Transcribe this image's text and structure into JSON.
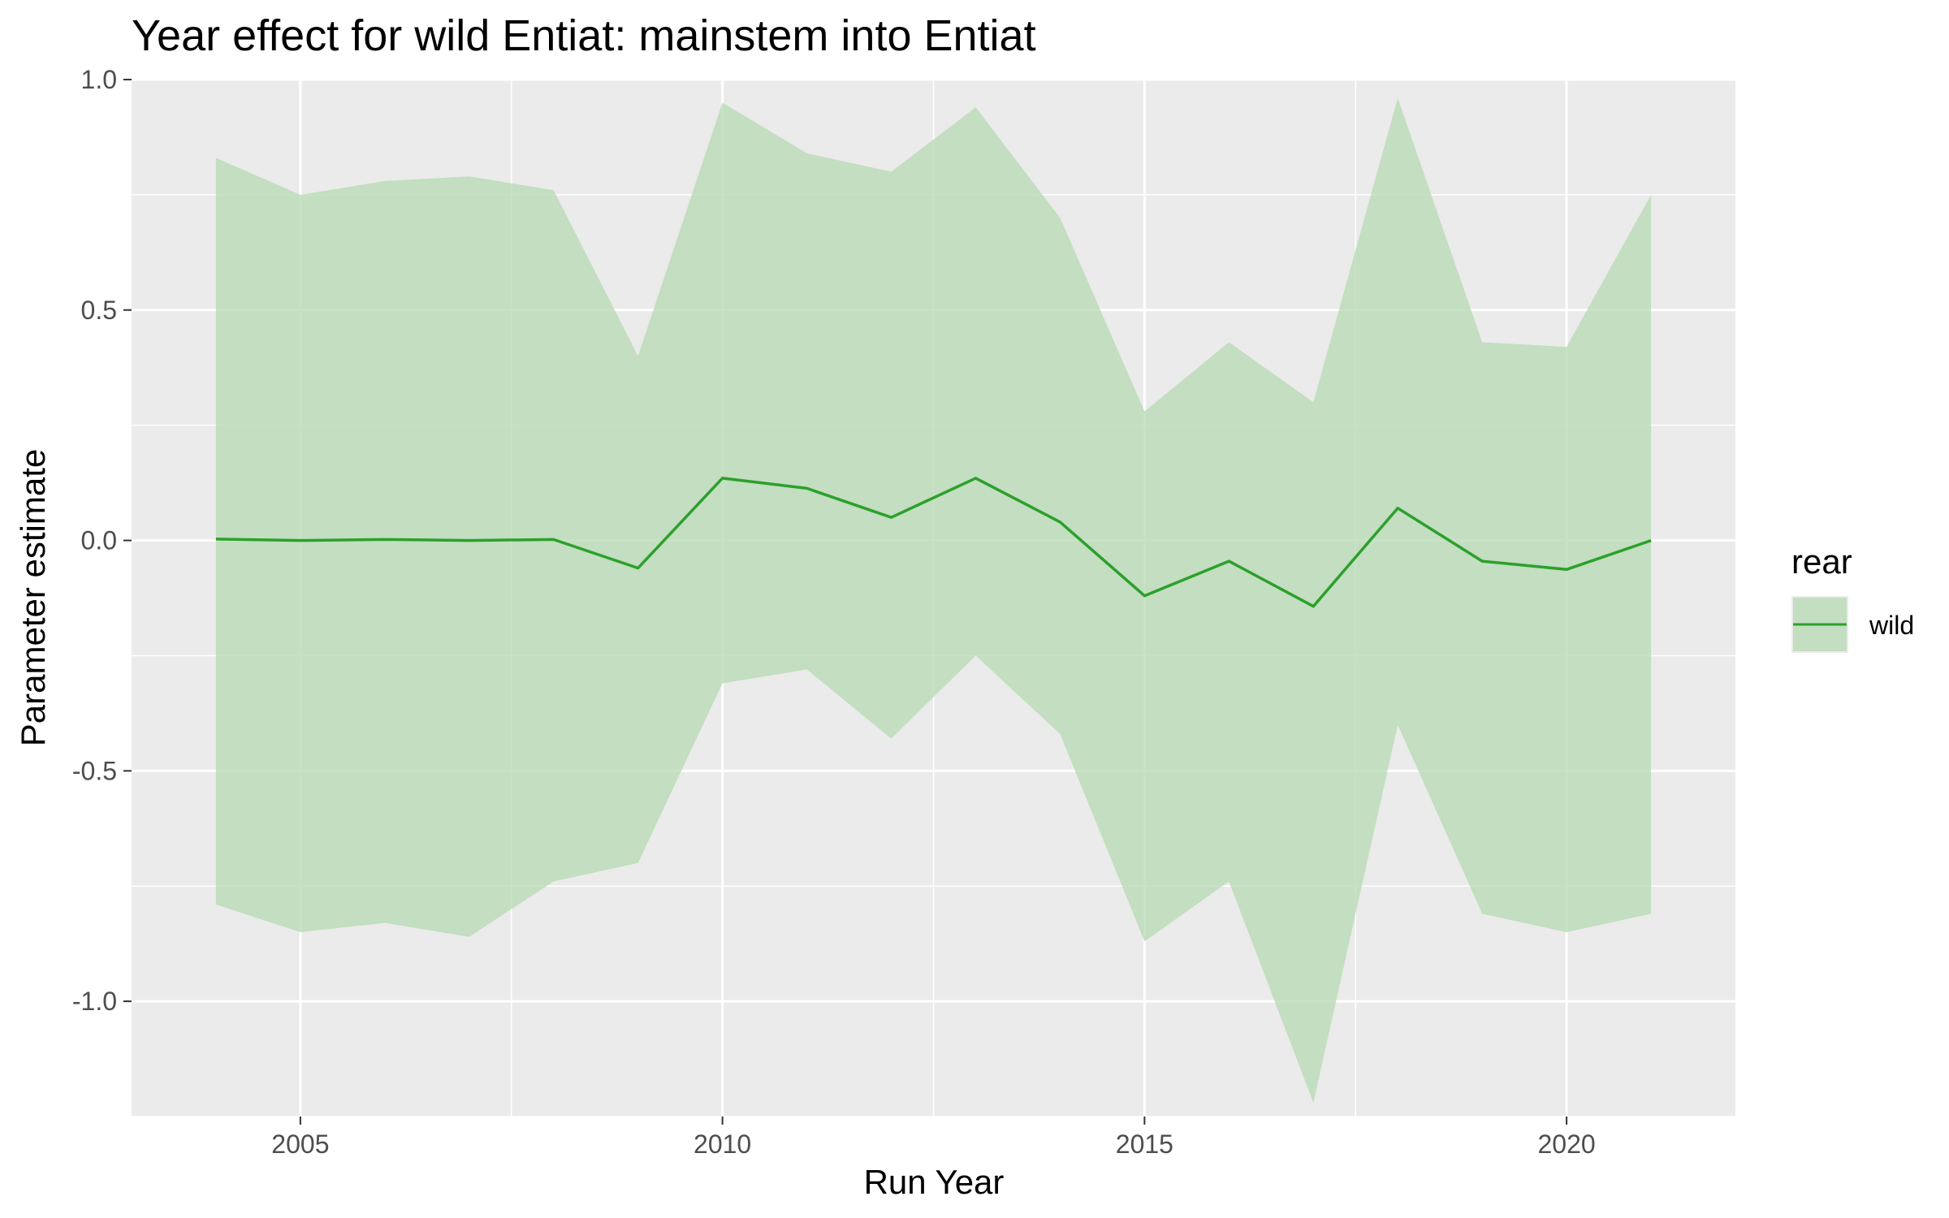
{
  "chart_data": {
    "type": "line",
    "title": "Year effect for wild Entiat: mainstem into Entiat",
    "xlabel": "Run Year",
    "ylabel": "Parameter estimate",
    "xlim": [
      2003,
      2022
    ],
    "ylim": [
      -1.25,
      1.0
    ],
    "x_ticks": [
      2005,
      2010,
      2015,
      2020
    ],
    "x_tick_labels": [
      "2005",
      "2010",
      "2015",
      "2020"
    ],
    "y_ticks": [
      1.0,
      0.5,
      0.0,
      -0.5,
      -1.0
    ],
    "y_tick_labels": [
      "1.0",
      "0.5",
      "0.0",
      "-0.5",
      "-1.0"
    ],
    "grid": true,
    "legend": {
      "title": "rear",
      "position": "right",
      "entries": [
        "wild"
      ]
    },
    "colors": {
      "line": "#2ca02c",
      "ribbon": "#b9dbb5",
      "panel": "#ebebeb",
      "grid": "#ffffff"
    },
    "x": [
      2004,
      2005,
      2006,
      2007,
      2008,
      2009,
      2010,
      2011,
      2012,
      2013,
      2014,
      2015,
      2016,
      2017,
      2018,
      2019,
      2020,
      2021
    ],
    "series": [
      {
        "name": "wild",
        "values": [
          0.003,
          0.0,
          0.002,
          0.0,
          0.002,
          -0.06,
          0.135,
          0.113,
          0.05,
          0.135,
          0.04,
          -0.12,
          -0.045,
          -0.143,
          0.07,
          -0.045,
          -0.063,
          0.0
        ],
        "lower": [
          -0.79,
          -0.85,
          -0.83,
          -0.86,
          -0.74,
          -0.7,
          -0.31,
          -0.28,
          -0.43,
          -0.25,
          -0.42,
          -0.87,
          -0.74,
          -1.22,
          -0.4,
          -0.81,
          -0.85,
          -0.81
        ],
        "upper": [
          0.83,
          0.75,
          0.78,
          0.79,
          0.76,
          0.4,
          0.95,
          0.84,
          0.8,
          0.94,
          0.7,
          0.28,
          0.43,
          0.3,
          0.96,
          0.43,
          0.42,
          0.75
        ]
      }
    ]
  }
}
